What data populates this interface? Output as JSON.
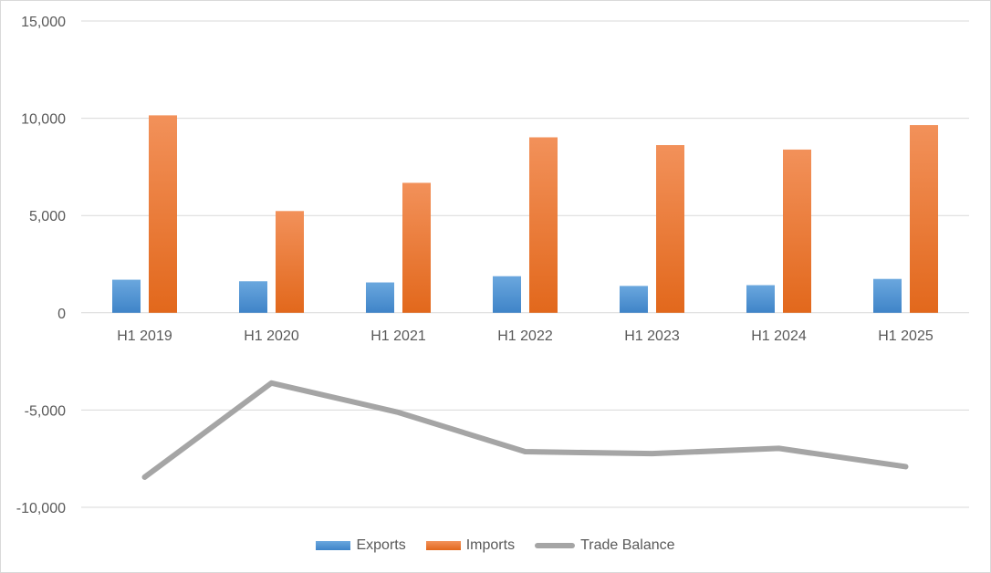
{
  "chart_data": {
    "type": "bar",
    "categories": [
      "H1 2019",
      "H1 2020",
      "H1 2021",
      "H1 2022",
      "H1 2023",
      "H1 2024",
      "H1 2025"
    ],
    "series": [
      {
        "name": "Exports",
        "type": "bar",
        "color": "#5b9bd5",
        "values": [
          1700,
          1620,
          1560,
          1880,
          1380,
          1420,
          1740
        ]
      },
      {
        "name": "Imports",
        "type": "bar",
        "color": "#ed7d31",
        "values": [
          10150,
          5230,
          6680,
          9020,
          8620,
          8390,
          9650
        ]
      },
      {
        "name": "Trade Balance",
        "type": "line",
        "color": "#a5a5a5",
        "values": [
          -8450,
          -3610,
          -5120,
          -7140,
          -7240,
          -6970,
          -7910
        ]
      }
    ],
    "ylim": [
      -10000,
      15000
    ],
    "yticks": [
      15000,
      10000,
      5000,
      0,
      -5000,
      -10000
    ],
    "ytick_labels": [
      "15,000",
      "10,000",
      "5,000",
      "0",
      "-5,000",
      "-10,000"
    ],
    "grid": true,
    "legend_position": "bottom"
  }
}
